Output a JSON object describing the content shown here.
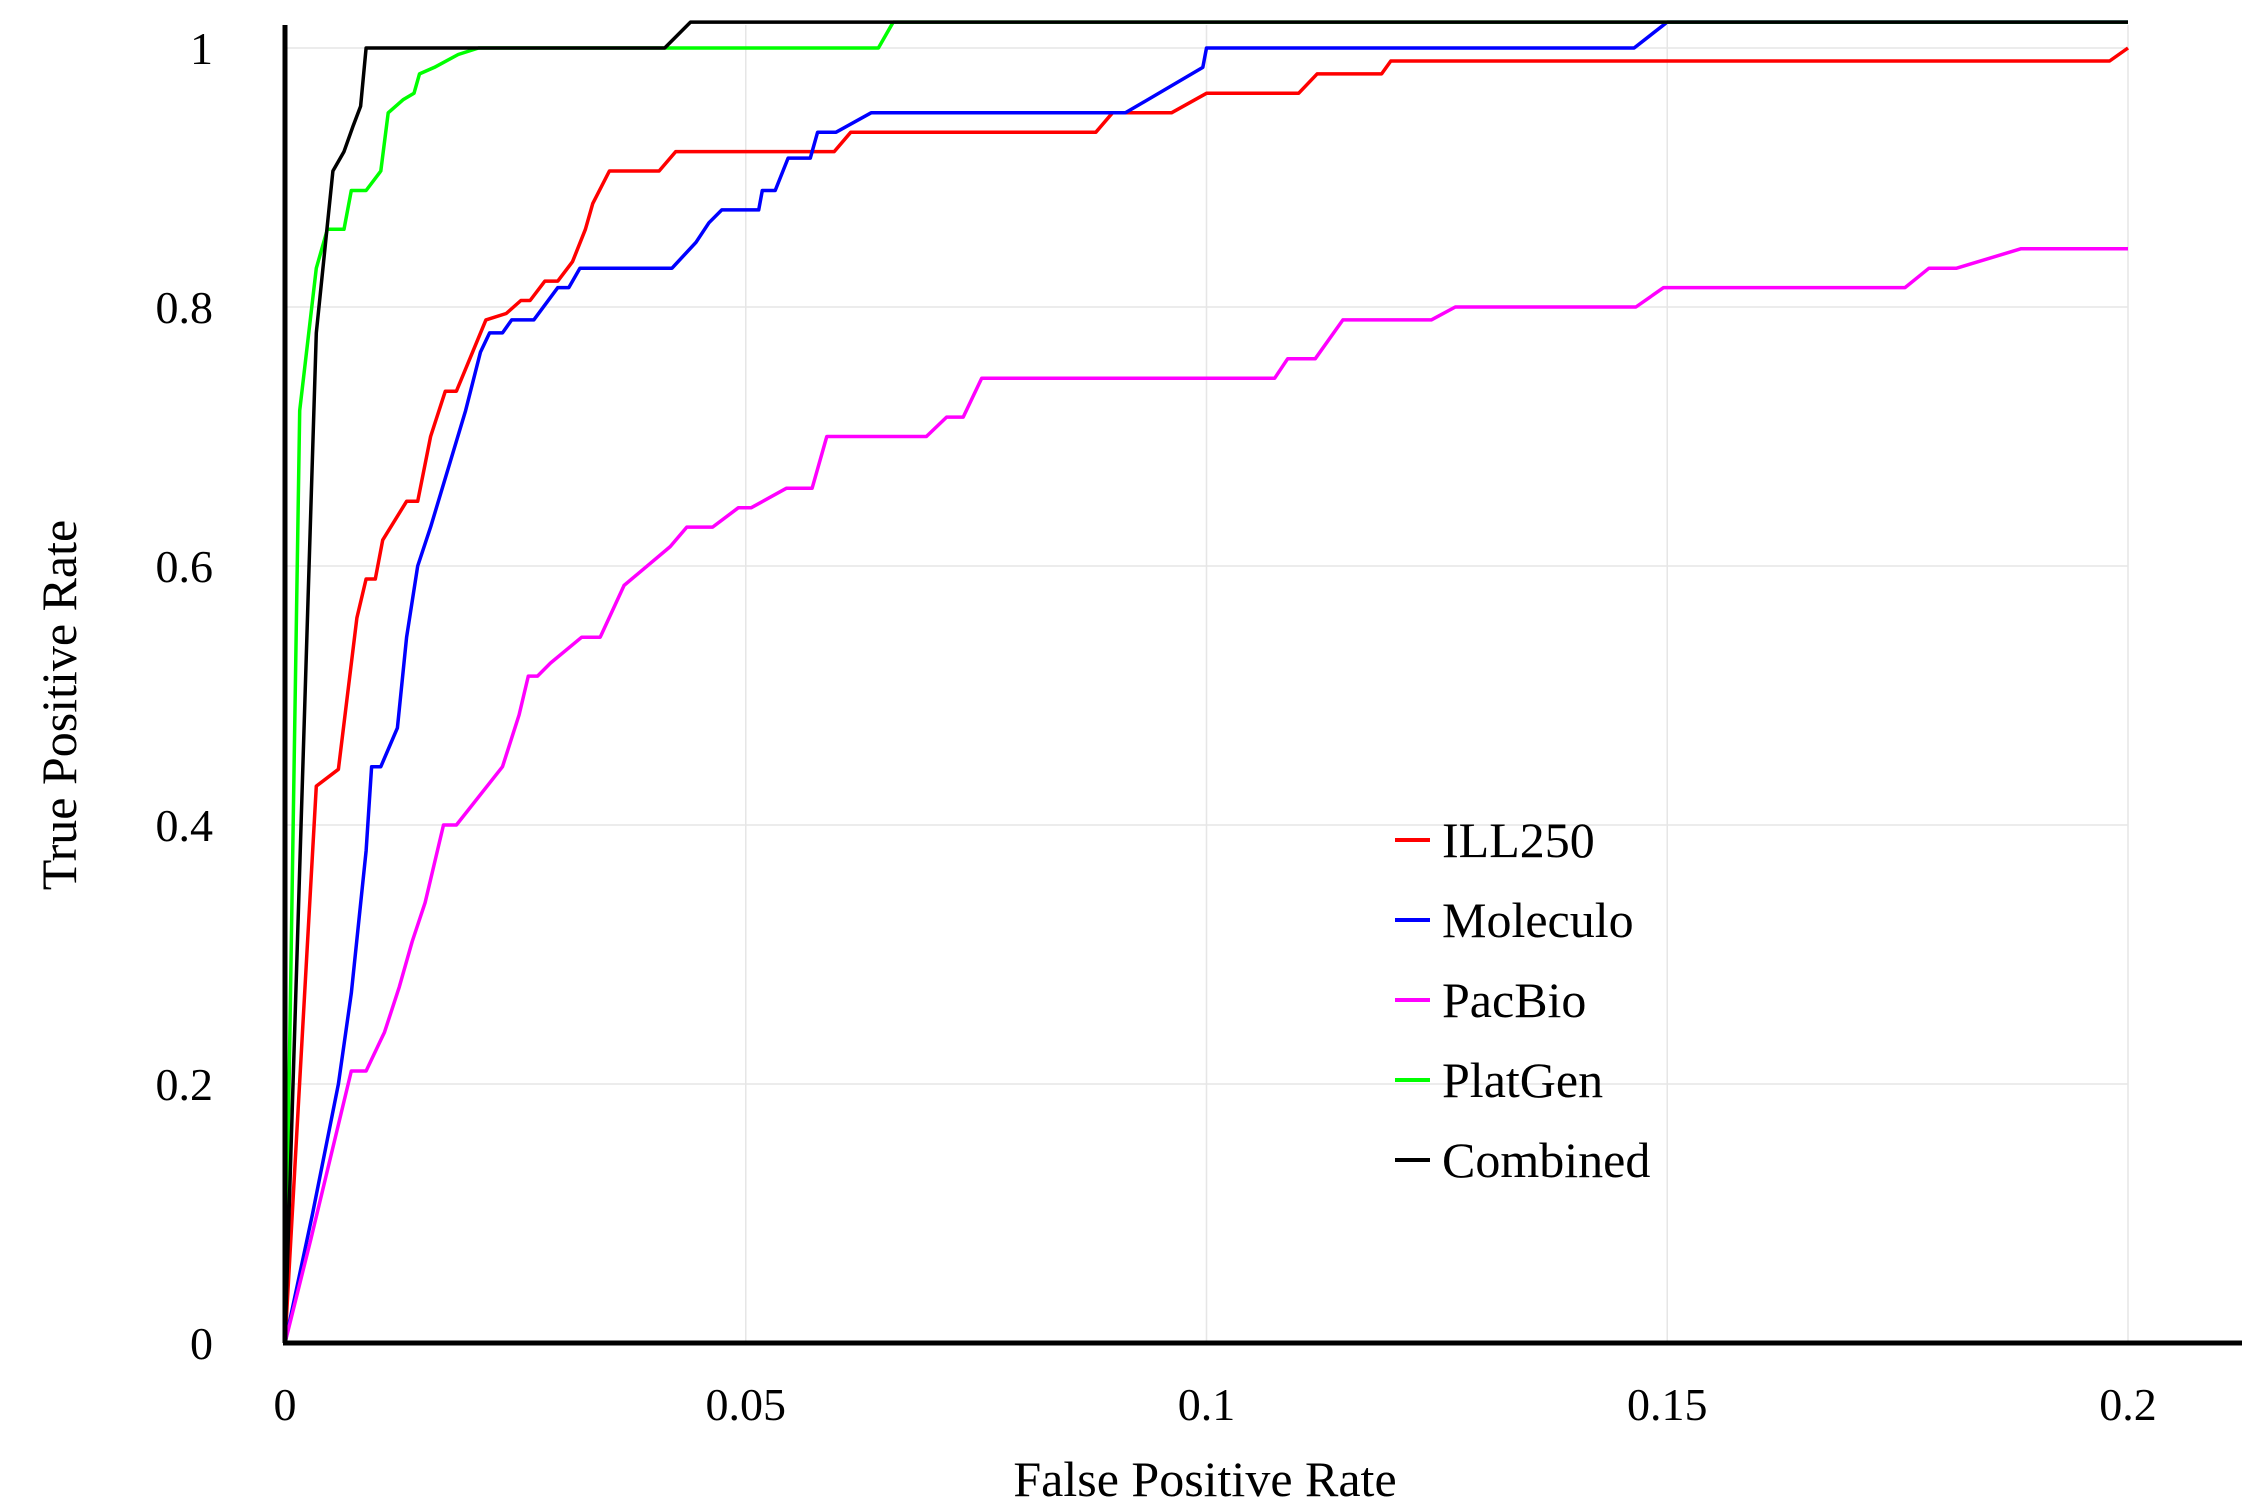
{
  "chart_data": {
    "type": "line",
    "xlabel": "False Positive Rate",
    "ylabel": "True Positive Rate",
    "xlim": [
      0,
      0.2
    ],
    "ylim": [
      0,
      1
    ],
    "xticks": [
      0,
      0.05,
      0.1,
      0.15,
      0.2
    ],
    "xtick_labels": [
      "0",
      "0.05",
      "0.1",
      "0.15",
      "0.2"
    ],
    "yticks": [
      0,
      0.2,
      0.4,
      0.6,
      0.8,
      1
    ],
    "ytick_labels": [
      "0",
      "0.2",
      "0.4",
      "0.6",
      "0.8",
      "1"
    ],
    "grid": true,
    "legend_position": "lower-right",
    "series": [
      {
        "name": "ILL250",
        "color": "#ff0000",
        "points": [
          [
            0,
            0
          ],
          [
            0.0034,
            0.43
          ],
          [
            0.0058,
            0.443
          ],
          [
            0.0078,
            0.56
          ],
          [
            0.0088,
            0.59
          ],
          [
            0.0098,
            0.59
          ],
          [
            0.0106,
            0.62
          ],
          [
            0.0132,
            0.65
          ],
          [
            0.0144,
            0.65
          ],
          [
            0.0158,
            0.7
          ],
          [
            0.0174,
            0.735
          ],
          [
            0.0186,
            0.735
          ],
          [
            0.0218,
            0.79
          ],
          [
            0.024,
            0.795
          ],
          [
            0.0256,
            0.805
          ],
          [
            0.0266,
            0.805
          ],
          [
            0.0282,
            0.82
          ],
          [
            0.0296,
            0.82
          ],
          [
            0.0312,
            0.835
          ],
          [
            0.0326,
            0.86
          ],
          [
            0.0334,
            0.88
          ],
          [
            0.0352,
            0.905
          ],
          [
            0.0406,
            0.905
          ],
          [
            0.0424,
            0.92
          ],
          [
            0.0566,
            0.92
          ],
          [
            0.0572,
            0.92
          ],
          [
            0.0596,
            0.92
          ],
          [
            0.0614,
            0.935
          ],
          [
            0.088,
            0.935
          ],
          [
            0.0898,
            0.95
          ],
          [
            0.0962,
            0.95
          ],
          [
            0.1,
            0.965
          ],
          [
            0.11,
            0.965
          ],
          [
            0.112,
            0.98
          ],
          [
            0.119,
            0.98
          ],
          [
            0.12,
            0.99
          ],
          [
            0.198,
            0.99
          ],
          [
            0.2,
            1.0
          ]
        ]
      },
      {
        "name": "Moleculo",
        "color": "#0000ff",
        "points": [
          [
            0,
            0
          ],
          [
            0.003,
            0.1
          ],
          [
            0.0058,
            0.2
          ],
          [
            0.0072,
            0.27
          ],
          [
            0.0088,
            0.38
          ],
          [
            0.0094,
            0.445
          ],
          [
            0.0104,
            0.445
          ],
          [
            0.0122,
            0.475
          ],
          [
            0.0132,
            0.545
          ],
          [
            0.0144,
            0.6
          ],
          [
            0.0158,
            0.63
          ],
          [
            0.0196,
            0.72
          ],
          [
            0.0212,
            0.765
          ],
          [
            0.0222,
            0.78
          ],
          [
            0.0228,
            0.78
          ],
          [
            0.0236,
            0.78
          ],
          [
            0.0246,
            0.79
          ],
          [
            0.0262,
            0.79
          ],
          [
            0.027,
            0.79
          ],
          [
            0.0296,
            0.815
          ],
          [
            0.0308,
            0.815
          ],
          [
            0.032,
            0.83
          ],
          [
            0.042,
            0.83
          ],
          [
            0.0446,
            0.85
          ],
          [
            0.046,
            0.865
          ],
          [
            0.0474,
            0.875
          ],
          [
            0.0514,
            0.875
          ],
          [
            0.0518,
            0.89
          ],
          [
            0.0532,
            0.89
          ],
          [
            0.0546,
            0.915
          ],
          [
            0.057,
            0.915
          ],
          [
            0.0578,
            0.935
          ],
          [
            0.0598,
            0.935
          ],
          [
            0.0636,
            0.95
          ],
          [
            0.0912,
            0.95
          ],
          [
            0.0996,
            0.985
          ],
          [
            0.1,
            1.0
          ],
          [
            0.1464,
            1.0
          ],
          [
            0.15,
            1.02
          ],
          [
            0.2,
            1.02
          ]
        ]
      },
      {
        "name": "PacBio",
        "color": "#ff00ff",
        "points": [
          [
            0,
            0
          ],
          [
            0.0028,
            0.08
          ],
          [
            0.0072,
            0.21
          ],
          [
            0.0088,
            0.21
          ],
          [
            0.0108,
            0.24
          ],
          [
            0.0124,
            0.275
          ],
          [
            0.0138,
            0.31
          ],
          [
            0.0152,
            0.34
          ],
          [
            0.0172,
            0.4
          ],
          [
            0.0186,
            0.4
          ],
          [
            0.0236,
            0.445
          ],
          [
            0.0254,
            0.485
          ],
          [
            0.0264,
            0.515
          ],
          [
            0.0274,
            0.515
          ],
          [
            0.0288,
            0.525
          ],
          [
            0.0322,
            0.545
          ],
          [
            0.0342,
            0.545
          ],
          [
            0.0368,
            0.585
          ],
          [
            0.0418,
            0.615
          ],
          [
            0.0436,
            0.63
          ],
          [
            0.0464,
            0.63
          ],
          [
            0.0492,
            0.645
          ],
          [
            0.0506,
            0.645
          ],
          [
            0.0544,
            0.66
          ],
          [
            0.0572,
            0.66
          ],
          [
            0.0588,
            0.7
          ],
          [
            0.0696,
            0.7
          ],
          [
            0.0718,
            0.715
          ],
          [
            0.0736,
            0.715
          ],
          [
            0.0756,
            0.745
          ],
          [
            0.1074,
            0.745
          ],
          [
            0.1088,
            0.76
          ],
          [
            0.1118,
            0.76
          ],
          [
            0.1148,
            0.79
          ],
          [
            0.1244,
            0.79
          ],
          [
            0.127,
            0.8
          ],
          [
            0.1466,
            0.8
          ],
          [
            0.1496,
            0.815
          ],
          [
            0.1758,
            0.815
          ],
          [
            0.1784,
            0.83
          ],
          [
            0.1814,
            0.83
          ],
          [
            0.1884,
            0.845
          ],
          [
            0.2,
            0.845
          ]
        ]
      },
      {
        "name": "PlatGen",
        "color": "#00ff00",
        "points": [
          [
            0,
            0
          ],
          [
            0.0016,
            0.72
          ],
          [
            0.0034,
            0.83
          ],
          [
            0.0046,
            0.86
          ],
          [
            0.0064,
            0.86
          ],
          [
            0.0072,
            0.89
          ],
          [
            0.0088,
            0.89
          ],
          [
            0.0104,
            0.905
          ],
          [
            0.0112,
            0.95
          ],
          [
            0.0128,
            0.96
          ],
          [
            0.014,
            0.965
          ],
          [
            0.0146,
            0.98
          ],
          [
            0.0162,
            0.985
          ],
          [
            0.0188,
            0.995
          ],
          [
            0.021,
            1.0
          ],
          [
            0.0644,
            1.0
          ],
          [
            0.066,
            1.02
          ],
          [
            0.2,
            1.02
          ]
        ]
      },
      {
        "name": "Combined",
        "color": "#000000",
        "points": [
          [
            0,
            0
          ],
          [
            0.0034,
            0.78
          ],
          [
            0.0052,
            0.905
          ],
          [
            0.0064,
            0.92
          ],
          [
            0.0074,
            0.94
          ],
          [
            0.0082,
            0.955
          ],
          [
            0.0088,
            1.0
          ],
          [
            0.0412,
            1.0
          ],
          [
            0.044,
            1.02
          ],
          [
            0.2,
            1.02
          ]
        ]
      }
    ]
  }
}
